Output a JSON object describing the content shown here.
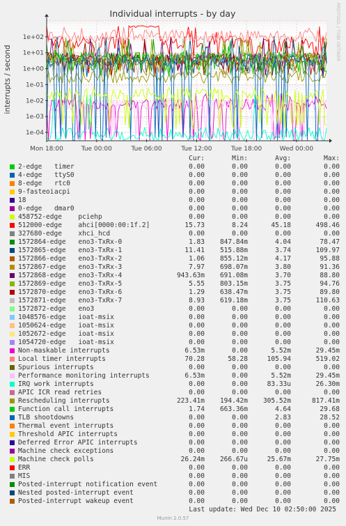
{
  "watermark": "RRDTOOL / TOBI OETIKER",
  "footer": {
    "last_update": "Last update: Wed Dec 10 02:50:00 2025",
    "version": "Munin 2.0.57"
  },
  "legend_headers": {
    "cur": "Cur:",
    "min": "Min:",
    "avg": "Avg:",
    "max": "Max:"
  },
  "chart_data": {
    "type": "line",
    "title": "Individual interrupts - by day",
    "ylabel": "interrupts / second",
    "yscale": "log",
    "ylim": [
      3e-05,
      1000
    ],
    "ytick_values": [
      0.0001,
      0.001,
      0.01,
      0.1,
      1,
      10,
      100
    ],
    "ytick_labels": [
      "1e-04",
      "1e-03",
      "1e-02",
      "1e-01",
      "1e+00",
      "1e+01",
      "1e+02"
    ],
    "xlim": [
      0,
      33.6
    ],
    "xtick_values": [
      0,
      6,
      12,
      18,
      24,
      30
    ],
    "xtick_labels": [
      "Mon 18:00",
      "Tue 00:00",
      "Tue 06:00",
      "Tue 12:00",
      "Tue 18:00",
      "Wed 00:00"
    ],
    "grid": true,
    "series": [
      {
        "name": "2-edge",
        "device": "timer",
        "color": "#00cc00",
        "cur": "0.00",
        "min": "0.00",
        "avg": "0.00",
        "max": "0.00"
      },
      {
        "name": "4-edge",
        "device": "ttyS0",
        "color": "#0066b3",
        "cur": "0.00",
        "min": "0.00",
        "avg": "0.00",
        "max": "0.00"
      },
      {
        "name": "8-edge",
        "device": "rtc0",
        "color": "#ff8000",
        "cur": "0.00",
        "min": "0.00",
        "avg": "0.00",
        "max": "0.00"
      },
      {
        "name": "9-fasteoi",
        "device": "acpi",
        "color": "#ffcc00",
        "cur": "0.00",
        "min": "0.00",
        "avg": "0.00",
        "max": "0.00"
      },
      {
        "name": "18",
        "device": "",
        "color": "#330099",
        "cur": "0.00",
        "min": "0.00",
        "avg": "0.00",
        "max": "0.00"
      },
      {
        "name": "0-edge",
        "device": "dmar0",
        "color": "#990099",
        "cur": "0.00",
        "min": "0.00",
        "avg": "0.00",
        "max": "0.00"
      },
      {
        "name": "458752-edge",
        "device": "pciehp",
        "color": "#ccff00",
        "cur": "0.00",
        "min": "0.00",
        "avg": "0.00",
        "max": "0.00"
      },
      {
        "name": "512000-edge",
        "device": "ahci[0000:00:1f.2]",
        "color": "#ff0000",
        "cur": "15.73",
        "min": "8.24",
        "avg": "45.18",
        "max": "498.46"
      },
      {
        "name": "327680-edge",
        "device": "xhci_hcd",
        "color": "#808080",
        "cur": "0.00",
        "min": "0.00",
        "avg": "0.00",
        "max": "0.00"
      },
      {
        "name": "1572864-edge",
        "device": "eno3-TxRx-0",
        "color": "#008f00",
        "cur": "1.83",
        "min": "847.84m",
        "avg": "4.04",
        "max": "78.47"
      },
      {
        "name": "1572865-edge",
        "device": "eno3-TxRx-1",
        "color": "#00487d",
        "cur": "11.41",
        "min": "515.88m",
        "avg": "3.74",
        "max": "109.97"
      },
      {
        "name": "1572866-edge",
        "device": "eno3-TxRx-2",
        "color": "#b35a00",
        "cur": "1.06",
        "min": "855.12m",
        "avg": "4.17",
        "max": "95.88"
      },
      {
        "name": "1572867-edge",
        "device": "eno3-TxRx-3",
        "color": "#b38f00",
        "cur": "7.97",
        "min": "698.07m",
        "avg": "3.80",
        "max": "91.36"
      },
      {
        "name": "1572868-edge",
        "device": "eno3-TxRx-4",
        "color": "#6b006b",
        "cur": "943.63m",
        "min": "691.08m",
        "avg": "3.70",
        "max": "88.80"
      },
      {
        "name": "1572869-edge",
        "device": "eno3-TxRx-5",
        "color": "#8fb300",
        "cur": "5.55",
        "min": "803.15m",
        "avg": "3.75",
        "max": "94.76"
      },
      {
        "name": "1572870-edge",
        "device": "eno3-TxRx-6",
        "color": "#b30000",
        "cur": "1.29",
        "min": "638.47m",
        "avg": "3.75",
        "max": "89.80"
      },
      {
        "name": "1572871-edge",
        "device": "eno3-TxRx-7",
        "color": "#bebebe",
        "cur": "8.93",
        "min": "619.18m",
        "avg": "3.75",
        "max": "110.63"
      },
      {
        "name": "1572872-edge",
        "device": "eno3",
        "color": "#80ff80",
        "cur": "0.00",
        "min": "0.00",
        "avg": "0.00",
        "max": "0.00"
      },
      {
        "name": "1048576-edge",
        "device": "ioat-msix",
        "color": "#80c9ff",
        "cur": "0.00",
        "min": "0.00",
        "avg": "0.00",
        "max": "0.00"
      },
      {
        "name": "1050624-edge",
        "device": "ioat-msix",
        "color": "#ffc080",
        "cur": "0.00",
        "min": "0.00",
        "avg": "0.00",
        "max": "0.00"
      },
      {
        "name": "1052672-edge",
        "device": "ioat-msix",
        "color": "#ffe680",
        "cur": "0.00",
        "min": "0.00",
        "avg": "0.00",
        "max": "0.00"
      },
      {
        "name": "1054720-edge",
        "device": "ioat-msix",
        "color": "#aa80ff",
        "cur": "0.00",
        "min": "0.00",
        "avg": "0.00",
        "max": "0.00"
      },
      {
        "name": "Non-maskable interrupts",
        "device": "",
        "color": "#ee00cc",
        "cur": "6.53m",
        "min": "0.00",
        "avg": "5.52m",
        "max": "29.45m"
      },
      {
        "name": "Local timer interrupts",
        "device": "",
        "color": "#ff8080",
        "cur": "70.28",
        "min": "58.28",
        "avg": "105.94",
        "max": "519.02"
      },
      {
        "name": "Spurious interrupts",
        "device": "",
        "color": "#666600",
        "cur": "0.00",
        "min": "0.00",
        "avg": "0.00",
        "max": "0.00"
      },
      {
        "name": "Performance monitoring interrupts",
        "device": "",
        "color": "#ffbfff",
        "cur": "6.53m",
        "min": "0.00",
        "avg": "5.52m",
        "max": "29.45m"
      },
      {
        "name": "IRQ work interrupts",
        "device": "",
        "color": "#00ffcc",
        "cur": "0.00",
        "min": "0.00",
        "avg": "83.33u",
        "max": "26.30m"
      },
      {
        "name": "APIC ICR read retries",
        "device": "",
        "color": "#cc6699",
        "cur": "0.00",
        "min": "0.00",
        "avg": "0.00",
        "max": "0.00"
      },
      {
        "name": "Rescheduling interrupts",
        "device": "",
        "color": "#999900",
        "cur": "223.41m",
        "min": "194.42m",
        "avg": "305.52m",
        "max": "817.41m"
      },
      {
        "name": "Function call interrupts",
        "device": "",
        "color": "#00cc00",
        "cur": "1.74",
        "min": "663.36m",
        "avg": "4.64",
        "max": "29.68"
      },
      {
        "name": "TLB shootdowns",
        "device": "",
        "color": "#0066b3",
        "cur": "0.00",
        "min": "0.00",
        "avg": "2.83",
        "max": "28.52"
      },
      {
        "name": "Thermal event interrupts",
        "device": "",
        "color": "#ff8000",
        "cur": "0.00",
        "min": "0.00",
        "avg": "0.00",
        "max": "0.00"
      },
      {
        "name": "Threshold APIC interrupts",
        "device": "",
        "color": "#ffcc00",
        "cur": "0.00",
        "min": "0.00",
        "avg": "0.00",
        "max": "0.00"
      },
      {
        "name": "Deferred Error APIC interrupts",
        "device": "",
        "color": "#330099",
        "cur": "0.00",
        "min": "0.00",
        "avg": "0.00",
        "max": "0.00"
      },
      {
        "name": "Machine check exceptions",
        "device": "",
        "color": "#990099",
        "cur": "0.00",
        "min": "0.00",
        "avg": "0.00",
        "max": "0.00"
      },
      {
        "name": "Machine check polls",
        "device": "",
        "color": "#ccff00",
        "cur": "26.24m",
        "min": "266.67u",
        "avg": "25.67m",
        "max": "27.75m"
      },
      {
        "name": "ERR",
        "device": "",
        "color": "#ff0000",
        "cur": "0.00",
        "min": "0.00",
        "avg": "0.00",
        "max": "0.00"
      },
      {
        "name": "MIS",
        "device": "",
        "color": "#808080",
        "cur": "0.00",
        "min": "0.00",
        "avg": "0.00",
        "max": "0.00"
      },
      {
        "name": "Posted-interrupt notification event",
        "device": "",
        "color": "#008f00",
        "cur": "0.00",
        "min": "0.00",
        "avg": "0.00",
        "max": "0.00"
      },
      {
        "name": "Nested posted-interrupt event",
        "device": "",
        "color": "#00487d",
        "cur": "0.00",
        "min": "0.00",
        "avg": "0.00",
        "max": "0.00"
      },
      {
        "name": "Posted-interrupt wakeup event",
        "device": "",
        "color": "#b35a00",
        "cur": "0.00",
        "min": "0.00",
        "avg": "0.00",
        "max": "0.00"
      }
    ]
  }
}
